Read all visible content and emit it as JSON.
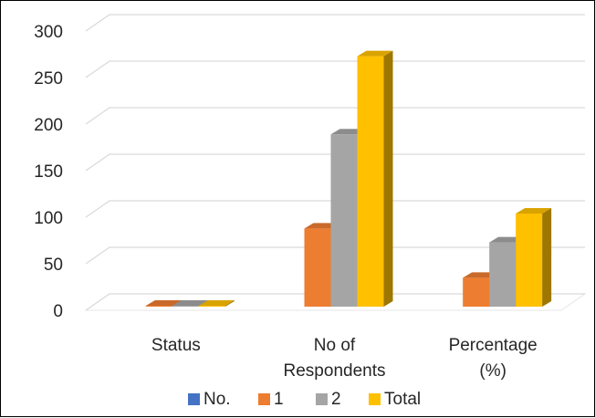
{
  "chart_data": {
    "type": "bar",
    "style": "3d-clustered-column",
    "categories": [
      [
        "Status"
      ],
      [
        "No of",
        "Respondents"
      ],
      [
        "Percentage",
        "(%)"
      ]
    ],
    "series": [
      {
        "name": "No.",
        "color": "#4472C4",
        "values": [
          0,
          0,
          0
        ]
      },
      {
        "name": "1",
        "color": "#ED7D31",
        "values": [
          0,
          84,
          31
        ]
      },
      {
        "name": "2",
        "color": "#A5A5A5",
        "values": [
          0,
          185,
          69
        ]
      },
      {
        "name": "Total",
        "color": "#FFC000",
        "values": [
          0,
          269,
          100
        ]
      }
    ],
    "ylim": [
      0,
      300
    ],
    "yticks": [
      0,
      50,
      100,
      150,
      200,
      250,
      300
    ],
    "grid": true,
    "legend_position": "bottom"
  }
}
